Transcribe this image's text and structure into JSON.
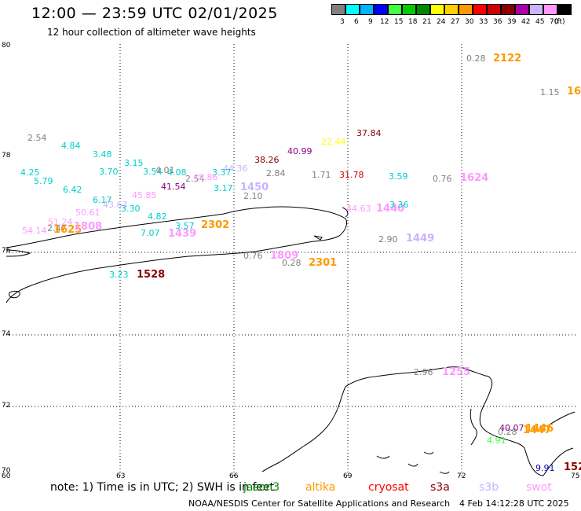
{
  "title": "12:00 — 23:59 UTC 02/01/2025",
  "subtitle": "12 hour collection of altimeter wave heights",
  "legend": {
    "unit_label": "(ft)",
    "items": [
      {
        "label": "3",
        "color": "#808080"
      },
      {
        "label": "6",
        "color": "#00ffff"
      },
      {
        "label": "9",
        "color": "#00b4ff"
      },
      {
        "label": "12",
        "color": "#0000ff"
      },
      {
        "label": "15",
        "color": "#40ff40"
      },
      {
        "label": "18",
        "color": "#00cc00"
      },
      {
        "label": "21",
        "color": "#008800"
      },
      {
        "label": "24",
        "color": "#ffff00"
      },
      {
        "label": "27",
        "color": "#ffd000"
      },
      {
        "label": "30",
        "color": "#ff9900"
      },
      {
        "label": "33",
        "color": "#ff0000"
      },
      {
        "label": "36",
        "color": "#cc0000"
      },
      {
        "label": "39",
        "color": "#880000"
      },
      {
        "label": "42",
        "color": "#aa00aa"
      },
      {
        "label": "45",
        "color": "#c8b4ff"
      },
      {
        "label": "70",
        "color": "#ff99ff"
      },
      {
        "label": "",
        "color": "#000000"
      }
    ]
  },
  "axes": {
    "lat_labels": [
      "80",
      "78",
      "76",
      "74",
      "72",
      "70"
    ],
    "lon_labels": [
      "60",
      "63",
      "66",
      "69",
      "72",
      "75"
    ]
  },
  "observations": [
    {
      "text": "0.28",
      "color": "#808080",
      "big": false
    },
    {
      "text": "2122",
      "color": "#ff9900",
      "big": true
    },
    {
      "text": "1.15",
      "color": "#808080",
      "big": false
    },
    {
      "text": "16",
      "color": "#ff9900",
      "big": true
    },
    {
      "text": "37.84",
      "color": "#880000",
      "big": false
    },
    {
      "text": "2.54",
      "color": "#808080",
      "big": false
    },
    {
      "text": "22.44",
      "color": "#ffff00",
      "big": false
    },
    {
      "text": "4.84",
      "color": "#00cccc",
      "big": false
    },
    {
      "text": "40.99",
      "color": "#880088",
      "big": false
    },
    {
      "text": "3.48",
      "color": "#00cccc",
      "big": false
    },
    {
      "text": "38.26",
      "color": "#880000",
      "big": false
    },
    {
      "text": "3.15",
      "color": "#00cccc",
      "big": false
    },
    {
      "text": "4.25",
      "color": "#00cccc",
      "big": false
    },
    {
      "text": "3.70",
      "color": "#00cccc",
      "big": false
    },
    {
      "text": "3.54",
      "color": "#00cccc",
      "big": false
    },
    {
      "text": "4.01",
      "color": "#808080",
      "big": false
    },
    {
      "text": "4.08",
      "color": "#00cccc",
      "big": false
    },
    {
      "text": "44.36",
      "color": "#c8b4ff",
      "big": false
    },
    {
      "text": "3.37",
      "color": "#00cccc",
      "big": false
    },
    {
      "text": "2.84",
      "color": "#808080",
      "big": false
    },
    {
      "text": "1.71",
      "color": "#808080",
      "big": false
    },
    {
      "text": "31.78",
      "color": "#cc0000",
      "big": false
    },
    {
      "text": "3.59",
      "color": "#00cccc",
      "big": false
    },
    {
      "text": "0.76",
      "color": "#808080",
      "big": false
    },
    {
      "text": "1624",
      "color": "#ff99ff",
      "big": true
    },
    {
      "text": "5.79",
      "color": "#00cccc",
      "big": false
    },
    {
      "text": "2.54",
      "color": "#808080",
      "big": false
    },
    {
      "text": "45.86",
      "color": "#ff99ff",
      "big": false
    },
    {
      "text": "41.54",
      "color": "#880088",
      "big": false
    },
    {
      "text": "3.17",
      "color": "#00cccc",
      "big": false
    },
    {
      "text": "1450",
      "color": "#c8b4ff",
      "big": true
    },
    {
      "text": "6.42",
      "color": "#00cccc",
      "big": false
    },
    {
      "text": "2.10",
      "color": "#808080",
      "big": false
    },
    {
      "text": "45.85",
      "color": "#ff99ff",
      "big": false
    },
    {
      "text": "6.17",
      "color": "#00cccc",
      "big": false
    },
    {
      "text": "43.63",
      "color": "#c8b4ff",
      "big": false
    },
    {
      "text": "3.30",
      "color": "#00cccc",
      "big": false
    },
    {
      "text": "44.63",
      "color": "#ff99ff",
      "big": false
    },
    {
      "text": "1440",
      "color": "#ff99ff",
      "big": true
    },
    {
      "text": "3.36",
      "color": "#00cccc",
      "big": false
    },
    {
      "text": "50.61",
      "color": "#ff99ff",
      "big": false
    },
    {
      "text": "4.82",
      "color": "#00cccc",
      "big": false
    },
    {
      "text": "51.24",
      "color": "#ff99ff",
      "big": false
    },
    {
      "text": "2.47",
      "color": "#808080",
      "big": false
    },
    {
      "text": "1625",
      "color": "#ff9900",
      "big": true
    },
    {
      "text": "1808",
      "color": "#ff99ff",
      "big": true
    },
    {
      "text": "3.57",
      "color": "#00cccc",
      "big": false
    },
    {
      "text": "2302",
      "color": "#ff9900",
      "big": true
    },
    {
      "text": "54.14",
      "color": "#ff99ff",
      "big": false
    },
    {
      "text": "7.07",
      "color": "#00cccc",
      "big": false
    },
    {
      "text": "1439",
      "color": "#ff99ff",
      "big": true
    },
    {
      "text": "2.90",
      "color": "#808080",
      "big": false
    },
    {
      "text": "1449",
      "color": "#c8b4ff",
      "big": true
    },
    {
      "text": "0.76",
      "color": "#808080",
      "big": false
    },
    {
      "text": "1809",
      "color": "#ff99ff",
      "big": true
    },
    {
      "text": "0.28",
      "color": "#808080",
      "big": false
    },
    {
      "text": "2301",
      "color": "#ff9900",
      "big": true
    },
    {
      "text": "3.23",
      "color": "#00cccc",
      "big": false
    },
    {
      "text": "1528",
      "color": "#880000",
      "big": true
    },
    {
      "text": "2.96",
      "color": "#808080",
      "big": false
    },
    {
      "text": "1255",
      "color": "#ff99ff",
      "big": true
    },
    {
      "text": "40.07",
      "color": "#880088",
      "big": false
    },
    {
      "text": "0.28",
      "color": "#808080",
      "big": false
    },
    {
      "text": "1446",
      "color": "#ff9900",
      "big": true
    },
    {
      "text": "1447",
      "color": "#ff9900",
      "big": true
    },
    {
      "text": "4.91",
      "color": "#40ff40",
      "big": false
    },
    {
      "text": "9.91",
      "color": "#0000aa",
      "big": false
    },
    {
      "text": "152",
      "color": "#880000",
      "big": true
    }
  ],
  "footer": {
    "note": "note: 1) Time is in UTC; 2) SWH is in feet",
    "satellites": [
      {
        "name": "jason3",
        "color": "#008800"
      },
      {
        "name": "altika",
        "color": "#ff9900"
      },
      {
        "name": "cryosat",
        "color": "#ff0000"
      },
      {
        "name": "s3a",
        "color": "#880000"
      },
      {
        "name": "s3b",
        "color": "#c8b4ff"
      },
      {
        "name": "swot",
        "color": "#ff99ff"
      }
    ],
    "credit": "NOAA/NESDIS Center for Satellite Applications and Research",
    "timestamp": "4 Feb 14:12:28 UTC 2025"
  }
}
